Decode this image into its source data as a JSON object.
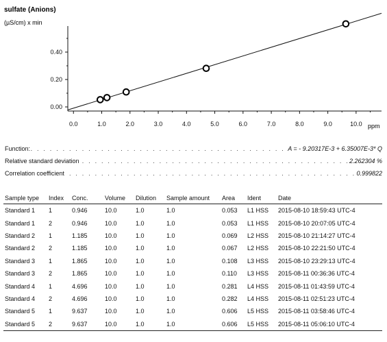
{
  "chart_data": {
    "type": "scatter",
    "title": "sulfate (Anions)",
    "ylabel": "(µS/cm) x min",
    "xlabel": "ppm",
    "xlim": [
      -0.2,
      10.9
    ],
    "ylim": [
      -0.03,
      0.68
    ],
    "x_ticks": [
      "0.0",
      "1.0",
      "2.0",
      "3.0",
      "4.0",
      "5.0",
      "6.0",
      "7.0",
      "8.0",
      "9.0",
      "10.0"
    ],
    "y_ticks": [
      "0.00",
      "0.20",
      "0.40"
    ],
    "points": [
      {
        "x": 0.946,
        "y": 0.053
      },
      {
        "x": 1.185,
        "y": 0.068
      },
      {
        "x": 1.865,
        "y": 0.109
      },
      {
        "x": 4.696,
        "y": 0.2815
      },
      {
        "x": 9.637,
        "y": 0.606
      }
    ],
    "fit_line": {
      "intercept": -0.00920317,
      "slope": 0.0635007
    }
  },
  "calibration": {
    "function_label": "Function:",
    "function_value": "A = - 9.20317E-3 + 6.35007E-3* Q",
    "rsd_label": "Relative standard deviation",
    "rsd_value": "2.262304 %",
    "corr_label": "Correlation coefficient",
    "corr_value": "0.999822"
  },
  "table": {
    "headers": [
      "Sample type",
      "Index",
      "Conc.",
      "Volume",
      "Dilution",
      "Sample amount",
      "Area",
      "Ident",
      "Date"
    ],
    "rows": [
      [
        "Standard 1",
        "1",
        "0.946",
        "10.0",
        "1.0",
        "1.0",
        "0.053",
        "L1 HSS",
        "2015-08-10 18:59:43 UTC-4"
      ],
      [
        "Standard 1",
        "2",
        "0.946",
        "10.0",
        "1.0",
        "1.0",
        "0.053",
        "L1 HSS",
        "2015-08-10 20:07:05 UTC-4"
      ],
      [
        "Standard 2",
        "1",
        "1.185",
        "10.0",
        "1.0",
        "1.0",
        "0.069",
        "L2 HSS",
        "2015-08-10 21:14:27 UTC-4"
      ],
      [
        "Standard 2",
        "2",
        "1.185",
        "10.0",
        "1.0",
        "1.0",
        "0.067",
        "L2 HSS",
        "2015-08-10 22:21:50 UTC-4"
      ],
      [
        "Standard 3",
        "1",
        "1.865",
        "10.0",
        "1.0",
        "1.0",
        "0.108",
        "L3 HSS",
        "2015-08-10 23:29:13 UTC-4"
      ],
      [
        "Standard 3",
        "2",
        "1.865",
        "10.0",
        "1.0",
        "1.0",
        "0.110",
        "L3 HSS",
        "2015-08-11 00:36:36 UTC-4"
      ],
      [
        "Standard 4",
        "1",
        "4.696",
        "10.0",
        "1.0",
        "1.0",
        "0.281",
        "L4 HSS",
        "2015-08-11 01:43:59 UTC-4"
      ],
      [
        "Standard 4",
        "2",
        "4.696",
        "10.0",
        "1.0",
        "1.0",
        "0.282",
        "L4 HSS",
        "2015-08-11 02:51:23 UTC-4"
      ],
      [
        "Standard 5",
        "1",
        "9.637",
        "10.0",
        "1.0",
        "1.0",
        "0.606",
        "L5 HSS",
        "2015-08-11 03:58:46 UTC-4"
      ],
      [
        "Standard 5",
        "2",
        "9.637",
        "10.0",
        "1.0",
        "1.0",
        "0.606",
        "L5 HSS",
        "2015-08-11 05:06:10 UTC-4"
      ]
    ]
  }
}
